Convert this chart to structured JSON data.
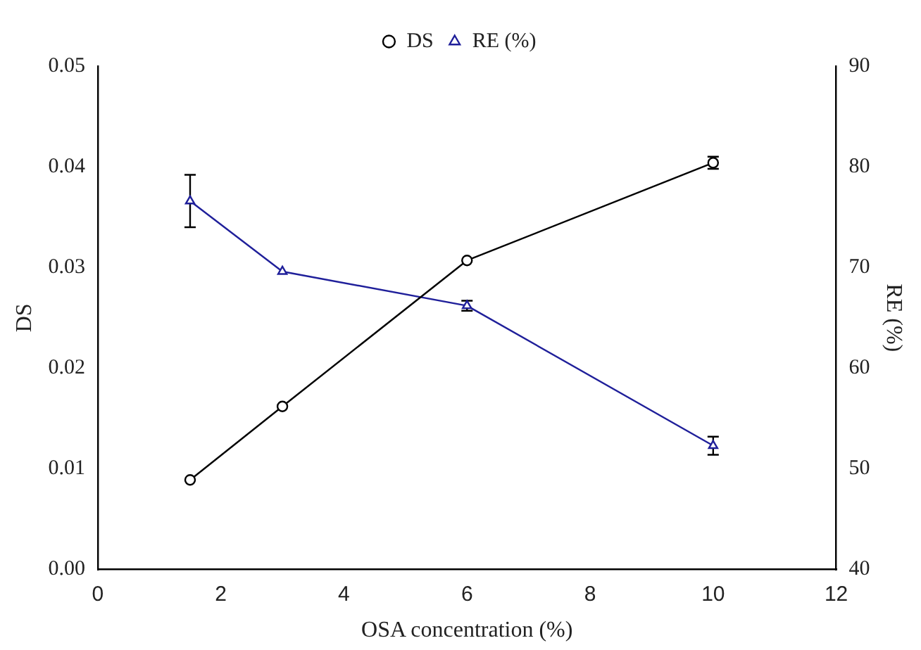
{
  "chart_data": {
    "type": "line",
    "xlabel": "OSA concentration (%)",
    "ylabel": "DS",
    "y2label": "RE (%)",
    "x": [
      1.5,
      3,
      6,
      10
    ],
    "series": [
      {
        "name": "DS",
        "color": "#000000",
        "marker": "circle",
        "values": [
          0.0089,
          0.0162,
          0.0307,
          0.0404
        ],
        "errors": [
          null,
          null,
          null,
          0.0006
        ]
      },
      {
        "name": "RE (%)",
        "color": "#1f1f9a",
        "marker": "triangle",
        "axis": "y2",
        "values": [
          76.6,
          69.6,
          66.2,
          52.3
        ],
        "errors": [
          2.6,
          null,
          0.5,
          0.9
        ]
      }
    ],
    "xlim": [
      0,
      12
    ],
    "xticks": [
      0,
      2,
      4,
      6,
      8,
      10,
      12
    ],
    "ylim": [
      0,
      0.05
    ],
    "yticks": [
      {
        "value": 0,
        "label": "0.00"
      },
      {
        "value": 0.01,
        "label": "0.01"
      },
      {
        "value": 0.02,
        "label": "0.02"
      },
      {
        "value": 0.03,
        "label": "0.03"
      },
      {
        "value": 0.04,
        "label": "0.04"
      },
      {
        "value": 0.05,
        "label": "0.05"
      }
    ],
    "y2lim": [
      40,
      90
    ],
    "y2ticks": [
      40,
      50,
      60,
      70,
      80,
      90
    ],
    "grid": false,
    "legend": "top",
    "line_style": "solid"
  }
}
